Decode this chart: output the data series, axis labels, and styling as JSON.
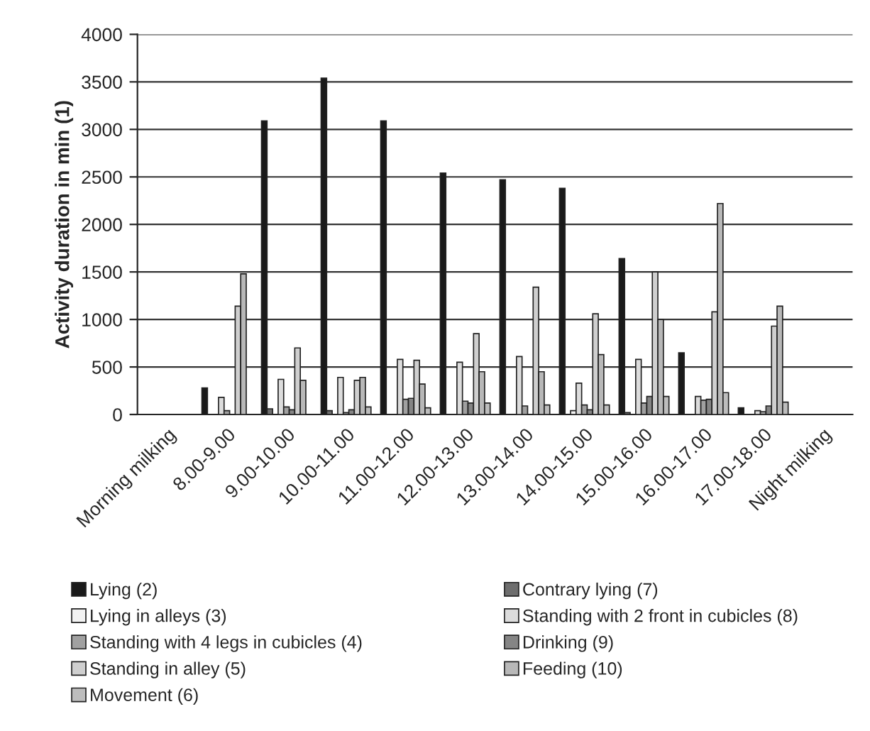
{
  "chart_data": {
    "type": "bar",
    "ylabel": "Activity duration in min (1)",
    "categories": [
      "Morning milking",
      "8.00-9.00",
      "9.00-10.00",
      "10.00-11.00",
      "11.00-12.00",
      "12.00-13.00",
      "13.00-14.00",
      "14.00-15.00",
      "15.00-16.00",
      "16.00-17.00",
      "17.00-18.00",
      "Night milking"
    ],
    "series": [
      {
        "name": "Lying (2)",
        "color": "#1a1a1a",
        "values": [
          null,
          280,
          3090,
          3540,
          3090,
          2540,
          2470,
          2380,
          1640,
          650,
          70,
          null
        ]
      },
      {
        "name": "Contrary lying (7)",
        "color": "#6e6e6e",
        "values": [
          null,
          null,
          60,
          40,
          null,
          null,
          null,
          null,
          20,
          null,
          null,
          null
        ]
      },
      {
        "name": "Lying in alleys (3)",
        "color": "#f2f2f2",
        "values": [
          null,
          null,
          null,
          null,
          null,
          null,
          null,
          40,
          null,
          null,
          null,
          null
        ]
      },
      {
        "name": "Standing with 2 front in cubicles (8)",
        "color": "#dcdcdc",
        "values": [
          null,
          180,
          370,
          390,
          580,
          550,
          610,
          330,
          580,
          190,
          40,
          null
        ]
      },
      {
        "name": "Standing with 4 legs in cubicles (4)",
        "color": "#a0a0a0",
        "values": [
          null,
          40,
          80,
          20,
          160,
          140,
          90,
          100,
          120,
          150,
          30,
          null
        ]
      },
      {
        "name": "Drinking (9)",
        "color": "#858585",
        "values": [
          null,
          null,
          50,
          50,
          170,
          120,
          null,
          50,
          190,
          160,
          90,
          null
        ]
      },
      {
        "name": "Standing in alley (5)",
        "color": "#cfcfcf",
        "values": [
          null,
          1140,
          700,
          360,
          570,
          850,
          1340,
          1060,
          1500,
          1080,
          930,
          null
        ]
      },
      {
        "name": "Feeding (10)",
        "color": "#b8b8b8",
        "values": [
          null,
          1480,
          360,
          390,
          320,
          450,
          450,
          630,
          1000,
          2220,
          1140,
          null
        ]
      },
      {
        "name": "Movement (6)",
        "color": "#bdbdbd",
        "values": [
          null,
          null,
          null,
          80,
          70,
          120,
          100,
          100,
          190,
          230,
          130,
          null
        ]
      }
    ],
    "ylim": [
      0,
      4000
    ],
    "yticks": [
      0,
      500,
      1000,
      1500,
      2000,
      2500,
      3000,
      3500,
      4000
    ],
    "grid": "y",
    "legend": "bottom"
  }
}
